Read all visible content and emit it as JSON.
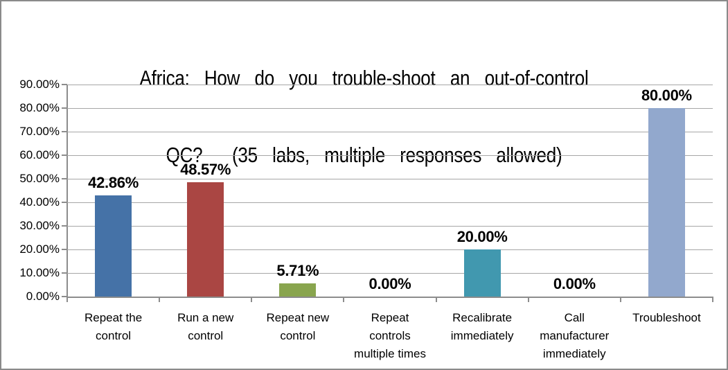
{
  "window": {
    "background": "#FFFFFF",
    "border_color": "#8A8A8A"
  },
  "chart_data": {
    "type": "bar",
    "title": "Africa: How do you trouble-shoot an out-of-control QC?  (35 labs, multiple responses allowed)",
    "title_lines": [
      "Africa: How do you trouble-shoot an out-of-control",
      "QC?  (35 labs, multiple responses allowed)"
    ],
    "categories": [
      "Repeat the control",
      "Run a new control",
      "Repeat new control",
      "Repeat controls multiple times",
      "Recalibrate immediately",
      "Call manufacturer immediately",
      "Troubleshoot"
    ],
    "category_label_lines": [
      [
        "Repeat the",
        "control"
      ],
      [
        "Run a new",
        "control"
      ],
      [
        "Repeat new",
        "control"
      ],
      [
        "Repeat",
        "controls",
        "multiple times"
      ],
      [
        "Recalibrate",
        "immediately"
      ],
      [
        "Call",
        "manufacturer",
        "immediately"
      ],
      [
        "Troubleshoot"
      ]
    ],
    "values": [
      42.86,
      48.57,
      5.71,
      0,
      20,
      0,
      80
    ],
    "data_labels": [
      "42.86%",
      "48.57%",
      "5.71%",
      "0.00%",
      "20.00%",
      "0.00%",
      "80.00%"
    ],
    "bar_colors": [
      "#4572A7",
      "#AA4643",
      "#89A54E",
      null,
      "#4198AF",
      null,
      "#92A8CD"
    ],
    "y_tick_labels": [
      "0.00%",
      "10.00%",
      "20.00%",
      "30.00%",
      "40.00%",
      "50.00%",
      "60.00%",
      "70.00%",
      "80.00%",
      "90.00%"
    ],
    "ylim": [
      0,
      90
    ],
    "y_tick_step": 10,
    "xlabel": "",
    "ylabel": "",
    "grid": true,
    "legend": "none",
    "colors": {
      "gridline": "#A6A6A6",
      "axis": "#8C8C8C",
      "text": "#000000",
      "data_label": "#000000"
    }
  }
}
